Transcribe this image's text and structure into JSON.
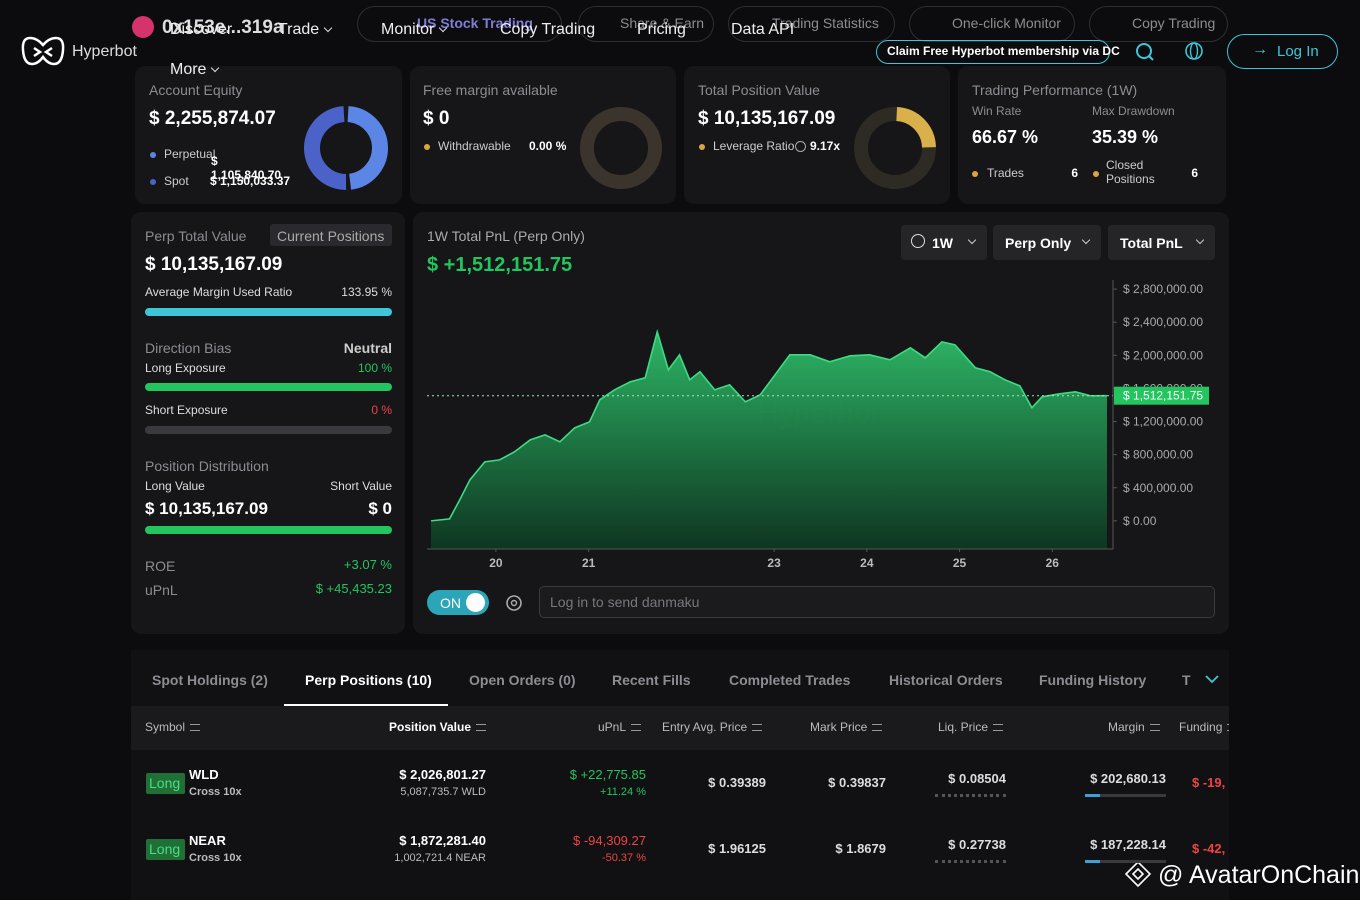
{
  "nav": {
    "brand": "Hyperbot",
    "address": "0x153e...319a",
    "menu": [
      "Discover",
      "Trade",
      "Monitor",
      "Copy Trading",
      "Pricing",
      "Data API",
      "More"
    ],
    "pills": [
      "US Stock Trading",
      "Share & Earn",
      "Trading Statistics",
      "One-click Monitor",
      "Copy Trading"
    ],
    "promo": "Claim Free Hyperbot membership via DC",
    "login": "Log In"
  },
  "summary": {
    "equity": {
      "title": "Account Equity",
      "total": "$ 2,255,874.07",
      "perpetual_label": "Perpetual",
      "perpetual": {
        "value": 1105840.7,
        "label": "$ 1,105,840.70"
      },
      "spot_label": "Spot",
      "spot": {
        "value": 1150033.37,
        "label": "$ 1,150,033.37"
      }
    },
    "margin": {
      "title": "Free margin available",
      "total": "$ 0",
      "withdrawable_label": "Withdrawable",
      "withdrawable": "0.00 %"
    },
    "position": {
      "title": "Total Position Value",
      "total": "$ 10,135,167.09",
      "leverage_label": "Leverage Ratio",
      "leverage": "9.17x"
    },
    "performance": {
      "title": "Trading Performance (1W)",
      "win_rate_label": "Win Rate",
      "win_rate": "66.67 %",
      "max_drawdown_label": "Max Drawdown",
      "max_drawdown": "35.39 %",
      "trades_label": "Trades",
      "trades": 6,
      "closed_label": "Closed Positions",
      "closed": 6
    }
  },
  "perp": {
    "title": "Perp Total Value",
    "button": "Current Positions",
    "total": "$ 10,135,167.09",
    "margin_ratio_label": "Average Margin Used Ratio",
    "margin_ratio": {
      "value": 133.95,
      "label": "133.95 %"
    },
    "bias_label": "Direction Bias",
    "bias": "Neutral",
    "long_label": "Long Exposure",
    "long": {
      "value": 100,
      "label": "100 %"
    },
    "short_label": "Short Exposure",
    "short": {
      "value": 0,
      "label": "0 %"
    },
    "distribution_label": "Position Distribution",
    "long_value_label": "Long Value",
    "short_value_label": "Short Value",
    "long_value": "$ 10,135,167.09",
    "short_value": "$ 0",
    "roe_label": "ROE",
    "roe": "+3.07 %",
    "upnl_label": "uPnL",
    "upnl": "$ +45,435.23"
  },
  "pnl": {
    "title": "1W Total PnL (Perp Only)",
    "total": "$ +1,512,151.75",
    "filters": [
      "1W",
      "Perp Only",
      "Total PnL"
    ],
    "toggle": "ON",
    "danmaku_placeholder": "Log in to send danmaku",
    "watermark": "Hyperbot"
  },
  "chart_data": {
    "type": "area",
    "color": "#3ddc84",
    "x": [
      19.3,
      19.5,
      19.61,
      19.72,
      19.88,
      20.04,
      20.2,
      20.37,
      20.53,
      20.69,
      20.85,
      21.01,
      21.12,
      21.28,
      21.45,
      21.61,
      21.74,
      21.86,
      21.98,
      22.09,
      22.2,
      22.36,
      22.52,
      22.69,
      22.85,
      23.01,
      23.17,
      23.39,
      23.6,
      23.82,
      24.03,
      24.25,
      24.47,
      24.63,
      24.81,
      24.95,
      25.17,
      25.33,
      25.49,
      25.65,
      25.78,
      25.89,
      26.08,
      26.25,
      26.41,
      26.59
    ],
    "values": [
      0,
      24000,
      254000,
      496000,
      713000,
      737000,
      834000,
      979000,
      1039000,
      955000,
      1124000,
      1196000,
      1462000,
      1583000,
      1680000,
      1728000,
      2284000,
      1825000,
      2006000,
      1704000,
      1801000,
      1583000,
      1644000,
      1438000,
      1523000,
      1764000,
      2006000,
      2006000,
      1922000,
      1994000,
      2006000,
      1946000,
      2091000,
      1970000,
      2163000,
      2127000,
      1849000,
      1801000,
      1704000,
      1631000,
      1366000,
      1499000,
      1535000,
      1559000,
      1511000,
      1512151.75
    ],
    "value_labels": [
      null,
      null,
      null,
      null,
      null,
      null,
      null,
      null,
      null,
      null,
      null,
      null,
      null,
      null,
      null,
      null,
      null,
      null,
      null,
      null,
      null,
      null,
      null,
      null,
      null,
      null,
      null,
      null,
      null,
      null,
      null,
      null,
      null,
      null,
      null,
      null,
      null,
      null,
      null,
      null,
      null,
      null,
      null,
      null,
      null,
      "$ 1,512,151.75"
    ],
    "xlim": [
      19.3,
      26.59
    ],
    "xticks": [
      20,
      21,
      23,
      24,
      25,
      26
    ],
    "ylim": [
      -340000,
      2910000
    ],
    "yticks": [
      {
        "value": 0,
        "label": "$ 0.00"
      },
      {
        "value": 400000,
        "label": "$ 400,000.00"
      },
      {
        "value": 800000,
        "label": "$ 800,000.00"
      },
      {
        "value": 1200000,
        "label": "$ 1,200,000.00"
      },
      {
        "value": 1600000,
        "label": "$ 1,600,000.00"
      },
      {
        "value": 2000000,
        "label": "$ 2,000,000.00"
      },
      {
        "value": 2400000,
        "label": "$ 2,400,000.00"
      },
      {
        "value": 2800000,
        "label": "$ 2,800,000.00"
      }
    ],
    "grid": false
  },
  "table": {
    "tabs": [
      "Spot Holdings (2)",
      "Perp Positions (10)",
      "Open Orders (0)",
      "Recent Fills",
      "Completed Trades",
      "Historical Orders",
      "Funding History",
      "T"
    ],
    "active_tab": 1,
    "columns": [
      "Symbol",
      "Position Value",
      "uPnL",
      "Entry Avg. Price",
      "Mark Price",
      "Liq. Price",
      "Margin",
      "Funding"
    ],
    "rows": [
      {
        "side": "Long",
        "symbol": "WLD",
        "mode": "Cross 10x",
        "value": "$ 2,026,801.27",
        "size": "5,087,735.7 WLD",
        "upnl": "$ +22,775.85",
        "upnl_pct": "+11.24 %",
        "entry": "$ 0.39389",
        "mark": "$ 0.39837",
        "liq": "$ 0.08504",
        "margin": "$ 202,680.13",
        "funding": "$ -19,"
      },
      {
        "side": "Long",
        "symbol": "NEAR",
        "mode": "Cross 10x",
        "value": "$ 1,872,281.40",
        "size": "1,002,721.4 NEAR",
        "upnl": "$ -94,309.27",
        "upnl_pct": "-50.37 %",
        "entry": "$ 1.96125",
        "mark": "$ 1.8679",
        "liq": "$ 0.27738",
        "margin": "$ 187,228.14",
        "funding": "$ -42,"
      }
    ]
  },
  "watermark": "@ AvatarOnChain"
}
